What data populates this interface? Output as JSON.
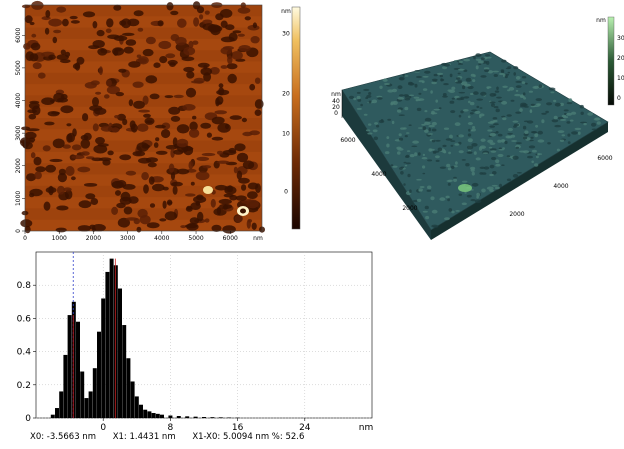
{
  "afm2d": {
    "x_ticks": [
      "0",
      "1000",
      "2000",
      "3000",
      "4000",
      "5000",
      "6000"
    ],
    "y_ticks": [
      "0",
      "1000",
      "2000",
      "3000",
      "4000",
      "5000",
      "6000"
    ],
    "x_unit": "nm",
    "colorbar_unit": "nm",
    "colorbar_ticks": [
      "30",
      "20",
      "10",
      "0"
    ],
    "colors": {
      "dark": "#3a1200",
      "mid": "#a6480f",
      "light": "#f6e09a"
    }
  },
  "afm3d": {
    "z_unit": "nm",
    "z_ticks": [
      "40",
      "20",
      "0"
    ],
    "left_axis_ticks": [
      "6000",
      "4000",
      "2000"
    ],
    "right_axis_ticks": [
      "6000",
      "4000",
      "2000"
    ],
    "colorbar_unit": "nm",
    "colorbar_ticks": [
      "30",
      "20",
      "10",
      "0"
    ],
    "colors": {
      "surface": "#2f5a5e",
      "highlight": "#7fd07f"
    }
  },
  "histogram": {
    "x_unit": "nm",
    "readout": {
      "x0": "X0: -3.5663 nm",
      "x1": "X1: 1.4431 nm",
      "diff": "X1-X0: 5.0094 nm %: 52.6"
    }
  },
  "chart_data": {
    "type": "bar",
    "title": "",
    "xlabel": "nm",
    "ylabel": "",
    "xlim": [
      -8,
      32
    ],
    "ylim": [
      0,
      1
    ],
    "x_ticks": [
      0,
      8,
      16,
      24
    ],
    "y_ticks": [
      0,
      0.2,
      0.4,
      0.6,
      0.8
    ],
    "x_tick_labels": [
      "0",
      "8",
      "16",
      "24"
    ],
    "y_tick_labels": [
      "0",
      "0.2",
      "0.4",
      "0.6",
      "0.8"
    ],
    "grid": true,
    "markers": {
      "x0": -3.5663,
      "x1": 1.4431
    },
    "series": [
      {
        "x": [
          -6,
          -5.5,
          -5,
          -4.5,
          -4,
          -3.5,
          -3,
          -2.5,
          -2,
          -1.5,
          -1,
          -0.5,
          0,
          0.5,
          1,
          1.5,
          2,
          2.5,
          3,
          3.5,
          4,
          4.5,
          5,
          5.5,
          6,
          6.5,
          7,
          8,
          9,
          10,
          11,
          12,
          13,
          14,
          15,
          16
        ],
        "values": [
          0.02,
          0.06,
          0.16,
          0.38,
          0.62,
          0.7,
          0.58,
          0.28,
          0.12,
          0.16,
          0.3,
          0.52,
          0.72,
          0.88,
          0.96,
          0.92,
          0.78,
          0.56,
          0.36,
          0.22,
          0.13,
          0.08,
          0.05,
          0.04,
          0.03,
          0.025,
          0.02,
          0.015,
          0.012,
          0.01,
          0.008,
          0.006,
          0.005,
          0.004,
          0.003,
          0.002
        ]
      }
    ]
  }
}
